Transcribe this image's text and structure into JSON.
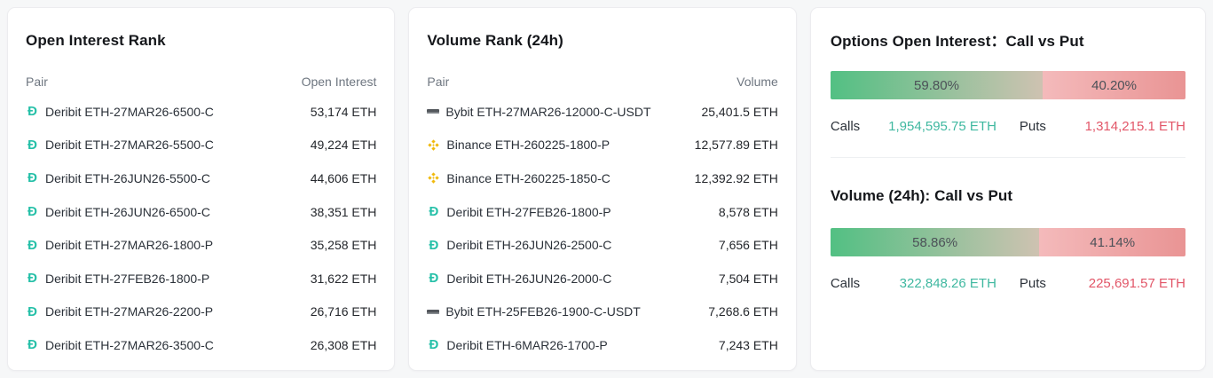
{
  "open_interest_rank": {
    "title": "Open Interest Rank",
    "col_pair": "Pair",
    "col_value": "Open Interest",
    "rows": [
      {
        "exchange": "deribit",
        "pair": "Deribit ETH-27MAR26-6500-C",
        "value": "53,174 ETH"
      },
      {
        "exchange": "deribit",
        "pair": "Deribit ETH-27MAR26-5500-C",
        "value": "49,224 ETH"
      },
      {
        "exchange": "deribit",
        "pair": "Deribit ETH-26JUN26-5500-C",
        "value": "44,606 ETH"
      },
      {
        "exchange": "deribit",
        "pair": "Deribit ETH-26JUN26-6500-C",
        "value": "38,351 ETH"
      },
      {
        "exchange": "deribit",
        "pair": "Deribit ETH-27MAR26-1800-P",
        "value": "35,258 ETH"
      },
      {
        "exchange": "deribit",
        "pair": "Deribit ETH-27FEB26-1800-P",
        "value": "31,622 ETH"
      },
      {
        "exchange": "deribit",
        "pair": "Deribit ETH-27MAR26-2200-P",
        "value": "26,716 ETH"
      },
      {
        "exchange": "deribit",
        "pair": "Deribit ETH-27MAR26-3500-C",
        "value": "26,308 ETH"
      }
    ]
  },
  "volume_rank": {
    "title": "Volume Rank (24h)",
    "col_pair": "Pair",
    "col_value": "Volume",
    "rows": [
      {
        "exchange": "bybit",
        "pair": "Bybit ETH-27MAR26-12000-C-USDT",
        "value": "25,401.5 ETH"
      },
      {
        "exchange": "binance",
        "pair": "Binance ETH-260225-1800-P",
        "value": "12,577.89 ETH"
      },
      {
        "exchange": "binance",
        "pair": "Binance ETH-260225-1850-C",
        "value": "12,392.92 ETH"
      },
      {
        "exchange": "deribit",
        "pair": "Deribit ETH-27FEB26-1800-P",
        "value": "8,578 ETH"
      },
      {
        "exchange": "deribit",
        "pair": "Deribit ETH-26JUN26-2500-C",
        "value": "7,656 ETH"
      },
      {
        "exchange": "deribit",
        "pair": "Deribit ETH-26JUN26-2000-C",
        "value": "7,504 ETH"
      },
      {
        "exchange": "bybit",
        "pair": "Bybit ETH-25FEB26-1900-C-USDT",
        "value": "7,268.6 ETH"
      },
      {
        "exchange": "deribit",
        "pair": "Deribit ETH-6MAR26-1700-P",
        "value": "7,243 ETH"
      }
    ]
  },
  "call_put": {
    "open_interest": {
      "title": "Options Open Interest：Call vs Put",
      "call_pct_label": "59.80%",
      "put_pct_label": "40.20%",
      "call_pct": 59.8,
      "put_pct": 40.2,
      "calls_label": "Calls",
      "puts_label": "Puts",
      "calls_value": "1,954,595.75 ETH",
      "puts_value": "1,314,215.1 ETH"
    },
    "volume": {
      "title": "Volume (24h): Call vs Put",
      "call_pct_label": "58.86%",
      "put_pct_label": "41.14%",
      "call_pct": 58.86,
      "put_pct": 41.14,
      "calls_label": "Calls",
      "puts_label": "Puts",
      "calls_value": "322,848.26 ETH",
      "puts_value": "225,691.57 ETH"
    }
  },
  "icons": {
    "deribit": "deribit-icon",
    "binance": "binance-icon",
    "bybit": "bybit-icon"
  },
  "colors": {
    "call_green": "#3fb8a0",
    "put_red": "#e25668",
    "deribit_teal": "#26c0a8",
    "binance_yellow": "#f0b90b",
    "bybit_dark": "#53575c",
    "bar_green_start": "#52c083",
    "bar_green_end": "#cec2b1",
    "bar_red_start": "#f4babb",
    "bar_red_end": "#e99494"
  },
  "chart_data": [
    {
      "type": "bar",
      "title": "Options Open Interest：Call vs Put",
      "categories": [
        "Calls",
        "Puts"
      ],
      "values": [
        59.8,
        40.2
      ],
      "value_labels": [
        "1,954,595.75 ETH",
        "1,314,215.1 ETH"
      ],
      "unit": "%",
      "legend_position": "none"
    },
    {
      "type": "bar",
      "title": "Volume (24h): Call vs Put",
      "categories": [
        "Calls",
        "Puts"
      ],
      "values": [
        58.86,
        41.14
      ],
      "value_labels": [
        "322,848.26 ETH",
        "225,691.57 ETH"
      ],
      "unit": "%",
      "legend_position": "none"
    }
  ]
}
